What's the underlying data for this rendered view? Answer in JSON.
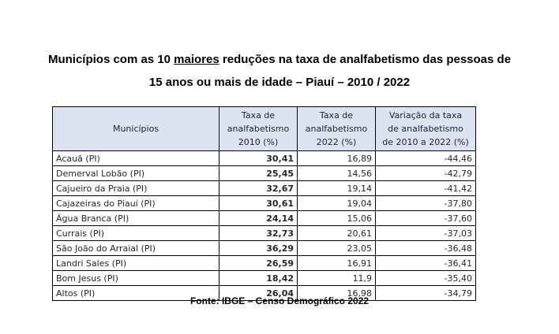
{
  "title": {
    "line1_prefix": "Municípios com as 10 ",
    "line1_underlined": "maiores",
    "line1_suffix": " reduções na taxa de analfabetismo das pessoas de",
    "line2": "15 anos ou mais de idade – Piauí – 2010 / 2022"
  },
  "table": {
    "headers": {
      "municipio": "Municípios",
      "taxa2010": [
        "Taxa de",
        "analfabetismo",
        "2010 (%)"
      ],
      "taxa2022": [
        "Taxa de",
        "analfabetismo",
        "2022 (%)"
      ],
      "variacao": [
        "Variação da taxa",
        "de analfabetismo",
        "de 2010 a 2022 (%)"
      ]
    },
    "rows": [
      {
        "municipio": "Acauã (PI)",
        "taxa2010": "30,41",
        "taxa2022": "16,89",
        "variacao": "-44,46"
      },
      {
        "municipio": "Demerval Lobão (PI)",
        "taxa2010": "25,45",
        "taxa2022": "14,56",
        "variacao": "-42,79"
      },
      {
        "municipio": "Cajueiro da Praia (PI)",
        "taxa2010": "32,67",
        "taxa2022": "19,14",
        "variacao": "-41,42"
      },
      {
        "municipio": "Cajazeiras do Piauí (PI)",
        "taxa2010": "30,61",
        "taxa2022": "19,04",
        "variacao": "-37,80"
      },
      {
        "municipio": "Água Branca (PI)",
        "taxa2010": "24,14",
        "taxa2022": "15,06",
        "variacao": "-37,60"
      },
      {
        "municipio": "Currais (PI)",
        "taxa2010": "32,73",
        "taxa2022": "20,61",
        "variacao": "-37,03"
      },
      {
        "municipio": "São João do Arraial (PI)",
        "taxa2010": "36,29",
        "taxa2022": "23,05",
        "variacao": "-36,48"
      },
      {
        "municipio": "Landri Sales (PI)",
        "taxa2010": "26,59",
        "taxa2022": "16,91",
        "variacao": "-36,41"
      },
      {
        "municipio": "Bom Jesus (PI)",
        "taxa2010": "18,42",
        "taxa2022": "11,9",
        "variacao": "-35,40"
      },
      {
        "municipio": "Altos (PI)",
        "taxa2010": "26,04",
        "taxa2022": "16,98",
        "variacao": "-34,79"
      }
    ]
  },
  "colors": {
    "header_background": "#dbe2f1",
    "border": "#000000",
    "table_text": "#262626"
  },
  "source": "Fonte: IBGE – Censo Demográfico 2022"
}
